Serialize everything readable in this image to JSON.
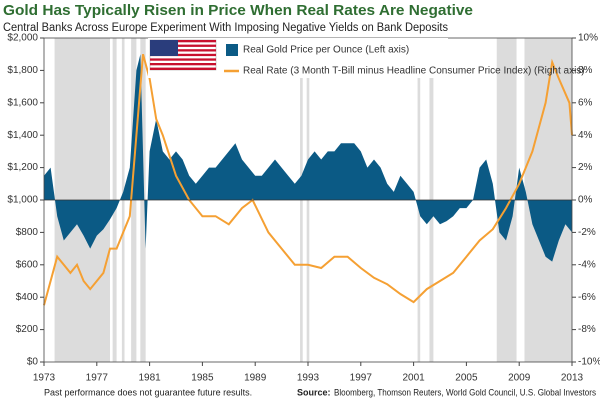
{
  "chart_data": {
    "type": "area_line",
    "title": "Gold Has Typically Risen in Price When Real Rates Are Negative",
    "subtitle": "Central Banks Across Europe Experiment With Imposing Negative Yields on Bank Deposits",
    "note": "Past performance does not guarantee future results.",
    "source_label": "Source:",
    "source": "Bloomberg, Thomson Reuters, World Gold Council, U.S. Global Investors",
    "xlim": [
      1973,
      2013
    ],
    "xticks": [
      1973,
      1977,
      1981,
      1985,
      1989,
      1993,
      1997,
      2001,
      2005,
      2009,
      2013
    ],
    "ylim": [
      0,
      2000
    ],
    "yticks": [
      {
        "value": 0,
        "label": "$0"
      },
      {
        "value": 200,
        "label": "$200"
      },
      {
        "value": 400,
        "label": "$400"
      },
      {
        "value": 600,
        "label": "$600"
      },
      {
        "value": 800,
        "label": "$800"
      },
      {
        "value": 1000,
        "label": "$1,000"
      },
      {
        "value": 1200,
        "label": "$1,200"
      },
      {
        "value": 1400,
        "label": "$1,400"
      },
      {
        "value": 1600,
        "label": "$1,600"
      },
      {
        "value": 1800,
        "label": "$1,800"
      },
      {
        "value": 2000,
        "label": "$2,000"
      }
    ],
    "y2lim": [
      -10,
      10
    ],
    "y2ticks": [
      {
        "value": -10,
        "label": "-10%"
      },
      {
        "value": -8,
        "label": "-8%"
      },
      {
        "value": -6,
        "label": "-6%"
      },
      {
        "value": -4,
        "label": "-4%"
      },
      {
        "value": -2,
        "label": "-2%"
      },
      {
        "value": 0,
        "label": "0%"
      },
      {
        "value": 2,
        "label": "2%"
      },
      {
        "value": 4,
        "label": "4%"
      },
      {
        "value": 6,
        "label": "6%"
      },
      {
        "value": 8,
        "label": "8%"
      },
      {
        "value": 10,
        "label": "10%"
      }
    ],
    "area_baseline": 1000,
    "shaded_periods": [
      [
        1973.8,
        1978.0
      ],
      [
        1978.2,
        1978.5
      ],
      [
        1978.9,
        1979.1
      ],
      [
        1979.6,
        1980.0
      ],
      [
        1980.3,
        1980.7
      ],
      [
        1992.4,
        1992.6
      ],
      [
        1992.9,
        1993.1
      ],
      [
        2001.3,
        2001.5
      ],
      [
        2002.2,
        2002.5
      ],
      [
        2007.3,
        2008.8
      ],
      [
        2009.4,
        2013.0
      ]
    ],
    "series": [
      {
        "name": "Real Gold Price per Ounce (Left axis)",
        "color": "#0b5a85",
        "x": [
          1973,
          1973.5,
          1974,
          1974.5,
          1975,
          1975.5,
          1976,
          1976.5,
          1977,
          1977.5,
          1978,
          1978.5,
          1979,
          1979.5,
          1980,
          1980.3,
          1980.7,
          1981,
          1981.5,
          1982,
          1982.5,
          1983,
          1983.5,
          1984,
          1984.5,
          1985,
          1985.5,
          1986,
          1986.5,
          1987,
          1987.5,
          1988,
          1988.5,
          1989,
          1989.5,
          1990,
          1990.5,
          1991,
          1991.5,
          1992,
          1992.5,
          1993,
          1993.5,
          1994,
          1994.5,
          1995,
          1995.5,
          1996,
          1996.5,
          1997,
          1997.5,
          1998,
          1998.5,
          1999,
          1999.5,
          2000,
          2000.5,
          2001,
          2001.5,
          2002,
          2002.5,
          2003,
          2003.5,
          2004,
          2004.5,
          2005,
          2005.5,
          2006,
          2006.5,
          2007,
          2007.5,
          2008,
          2008.5,
          2009,
          2009.5,
          2010,
          2010.5,
          2011,
          2011.5,
          2012,
          2012.5,
          2013
        ],
        "values": [
          1150,
          1200,
          900,
          750,
          800,
          850,
          780,
          700,
          780,
          820,
          880,
          950,
          1050,
          1200,
          1800,
          1900,
          700,
          1300,
          1500,
          1300,
          1250,
          1300,
          1250,
          1150,
          1100,
          1150,
          1200,
          1200,
          1250,
          1300,
          1350,
          1250,
          1200,
          1150,
          1150,
          1200,
          1250,
          1200,
          1150,
          1100,
          1150,
          1250,
          1300,
          1250,
          1300,
          1300,
          1350,
          1350,
          1350,
          1300,
          1200,
          1250,
          1200,
          1100,
          1050,
          1150,
          1100,
          1050,
          900,
          850,
          900,
          850,
          870,
          900,
          950,
          950,
          1000,
          1200,
          1250,
          1100,
          800,
          750,
          900,
          1200,
          1050,
          850,
          750,
          650,
          620,
          750,
          850,
          800
        ]
      },
      {
        "name": "Real Rate (3 Month T-Bill minus Headline Consumer Price Index) (Right axis)",
        "color": "#f5a033",
        "axis": "y2",
        "x": [
          1973,
          1973.5,
          1974,
          1974.5,
          1975,
          1975.5,
          1976,
          1976.5,
          1977,
          1977.5,
          1978,
          1978.5,
          1979,
          1979.5,
          1980,
          1980.5,
          1981,
          1981.5,
          1982,
          1983,
          1984,
          1985,
          1986,
          1987,
          1988,
          1988.8,
          1990,
          1991,
          1992,
          1993,
          1994,
          1995,
          1996,
          1997,
          1998,
          1999,
          2000,
          2001,
          2002,
          2003,
          2004,
          2005,
          2006,
          2007,
          2008,
          2009,
          2010,
          2011,
          2011.5,
          2012,
          2012.8,
          2013
        ],
        "values": [
          -6.5,
          -5,
          -3.5,
          -4,
          -4.5,
          -4,
          -5,
          -5.5,
          -5,
          -4.5,
          -3,
          -3,
          -2,
          -1,
          4,
          9,
          7.5,
          5,
          4,
          1.5,
          0,
          -1,
          -1,
          -1.5,
          -0.5,
          0,
          -2,
          -3,
          -4,
          -4,
          -4.2,
          -3.5,
          -3.5,
          -4.2,
          -4.8,
          -5.2,
          -5.8,
          -6.3,
          -5.5,
          -5,
          -4.5,
          -3.5,
          -2.5,
          -1.8,
          -0.5,
          1,
          3,
          6,
          8.5,
          7.5,
          6,
          4
        ]
      }
    ]
  }
}
